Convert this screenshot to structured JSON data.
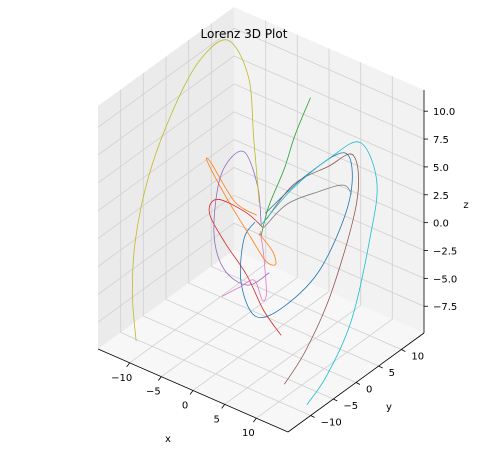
{
  "chart_data": {
    "type": "line",
    "projection": "3d",
    "title": "Lorenz 3D Plot",
    "xlabel": "x",
    "ylabel": "y",
    "zlabel": "z",
    "x_ticks": [
      "−10",
      "−5",
      "0",
      "5",
      "10"
    ],
    "y_ticks": [
      "−10",
      "−5",
      "0",
      "5",
      "10"
    ],
    "z_ticks": [
      "10.0",
      "7.5",
      "5.0",
      "2.5",
      "0.0",
      "−2.5",
      "−5.0",
      "−7.5"
    ],
    "grid": true,
    "series": [
      {
        "color": "#1f77b4",
        "points": [
          [
            0.3,
            0.6,
            1.5
          ],
          [
            3,
            6,
            4
          ],
          [
            7,
            9,
            6
          ],
          [
            9,
            7,
            3
          ],
          [
            8,
            2,
            -2
          ],
          [
            5,
            -2,
            -5
          ],
          [
            2,
            -4,
            -6
          ],
          [
            -1,
            -3,
            -4
          ],
          [
            -2,
            -1,
            -1
          ],
          [
            -1,
            0,
            0.5
          ]
        ]
      },
      {
        "color": "#ff7f0e",
        "points": [
          [
            -0.3,
            -0.6,
            1.5
          ],
          [
            -2,
            -3,
            3
          ],
          [
            -5,
            -4,
            6
          ],
          [
            -7,
            -2,
            5
          ],
          [
            -6,
            1,
            1
          ],
          [
            -3,
            2,
            -2
          ],
          [
            0,
            1,
            -3
          ],
          [
            3,
            -1,
            -2
          ],
          [
            4,
            -3,
            0
          ],
          [
            2,
            -3,
            1
          ],
          [
            0.5,
            -1,
            0
          ]
        ]
      },
      {
        "color": "#2ca02c",
        "points": [
          [
            0,
            0,
            -0.5
          ],
          [
            0.5,
            1,
            2
          ],
          [
            1.5,
            3,
            5
          ],
          [
            2.5,
            4,
            8
          ],
          [
            3.5,
            6,
            11
          ]
        ]
      },
      {
        "color": "#d62728",
        "points": [
          [
            0.5,
            -0.3,
            0.5
          ],
          [
            -1,
            -2,
            2
          ],
          [
            -4,
            -4,
            3
          ],
          [
            -6,
            -3,
            1
          ],
          [
            -5,
            -1,
            -2
          ],
          [
            -3,
            1,
            -5
          ],
          [
            -1,
            2,
            -8
          ],
          [
            1,
            3,
            -10
          ]
        ]
      },
      {
        "color": "#9467bd",
        "points": [
          [
            -0.2,
            0.3,
            0.5
          ],
          [
            -2,
            2,
            3
          ],
          [
            -5,
            3,
            5
          ],
          [
            -7,
            1,
            3
          ],
          [
            -6,
            -2,
            -1
          ],
          [
            -3,
            -4,
            -3
          ],
          [
            0,
            -3,
            -4
          ],
          [
            2,
            -1,
            -3
          ]
        ]
      },
      {
        "color": "#8c564b",
        "points": [
          [
            0.5,
            0.5,
            1
          ],
          [
            3,
            3,
            4
          ],
          [
            7,
            5,
            6
          ],
          [
            11,
            5,
            8
          ],
          [
            13,
            3,
            5
          ],
          [
            12,
            -1,
            -2
          ],
          [
            10,
            -4,
            -7
          ],
          [
            8,
            -6,
            -10
          ]
        ]
      },
      {
        "color": "#e377c2",
        "points": [
          [
            0,
            -0.2,
            0
          ],
          [
            1,
            -1,
            -1
          ],
          [
            2,
            -2,
            -2
          ],
          [
            3,
            -3,
            -4
          ],
          [
            2,
            -2.5,
            -5
          ],
          [
            0,
            -1.5,
            -4
          ],
          [
            -2,
            -2,
            -5
          ],
          [
            -4,
            -3,
            -6
          ]
        ]
      },
      {
        "color": "#bcbd22",
        "points": [
          [
            -1,
            1,
            2
          ],
          [
            -4,
            4,
            6
          ],
          [
            -7,
            7,
            10
          ],
          [
            -11,
            8,
            12
          ],
          [
            -14,
            6,
            10
          ],
          [
            -16,
            3,
            6
          ],
          [
            -17,
            -1,
            1
          ],
          [
            -17,
            -4,
            -4
          ],
          [
            -16,
            -6,
            -8
          ],
          [
            -14,
            -8,
            -11
          ]
        ]
      },
      {
        "color": "#17becf",
        "points": [
          [
            0,
            0,
            0.5
          ],
          [
            2,
            4,
            3
          ],
          [
            6,
            7,
            6
          ],
          [
            10,
            8,
            8
          ],
          [
            14,
            6,
            6
          ],
          [
            15,
            3,
            2
          ],
          [
            15,
            -1,
            -4
          ],
          [
            14,
            -5,
            -8
          ],
          [
            13,
            -8,
            -10
          ]
        ]
      },
      {
        "color": "#7f7f7f",
        "points": [
          [
            0.3,
            0.3,
            0.3
          ],
          [
            2,
            3,
            2
          ],
          [
            5,
            6,
            3
          ],
          [
            8,
            7,
            4
          ],
          [
            10,
            6,
            4
          ]
        ]
      }
    ]
  }
}
